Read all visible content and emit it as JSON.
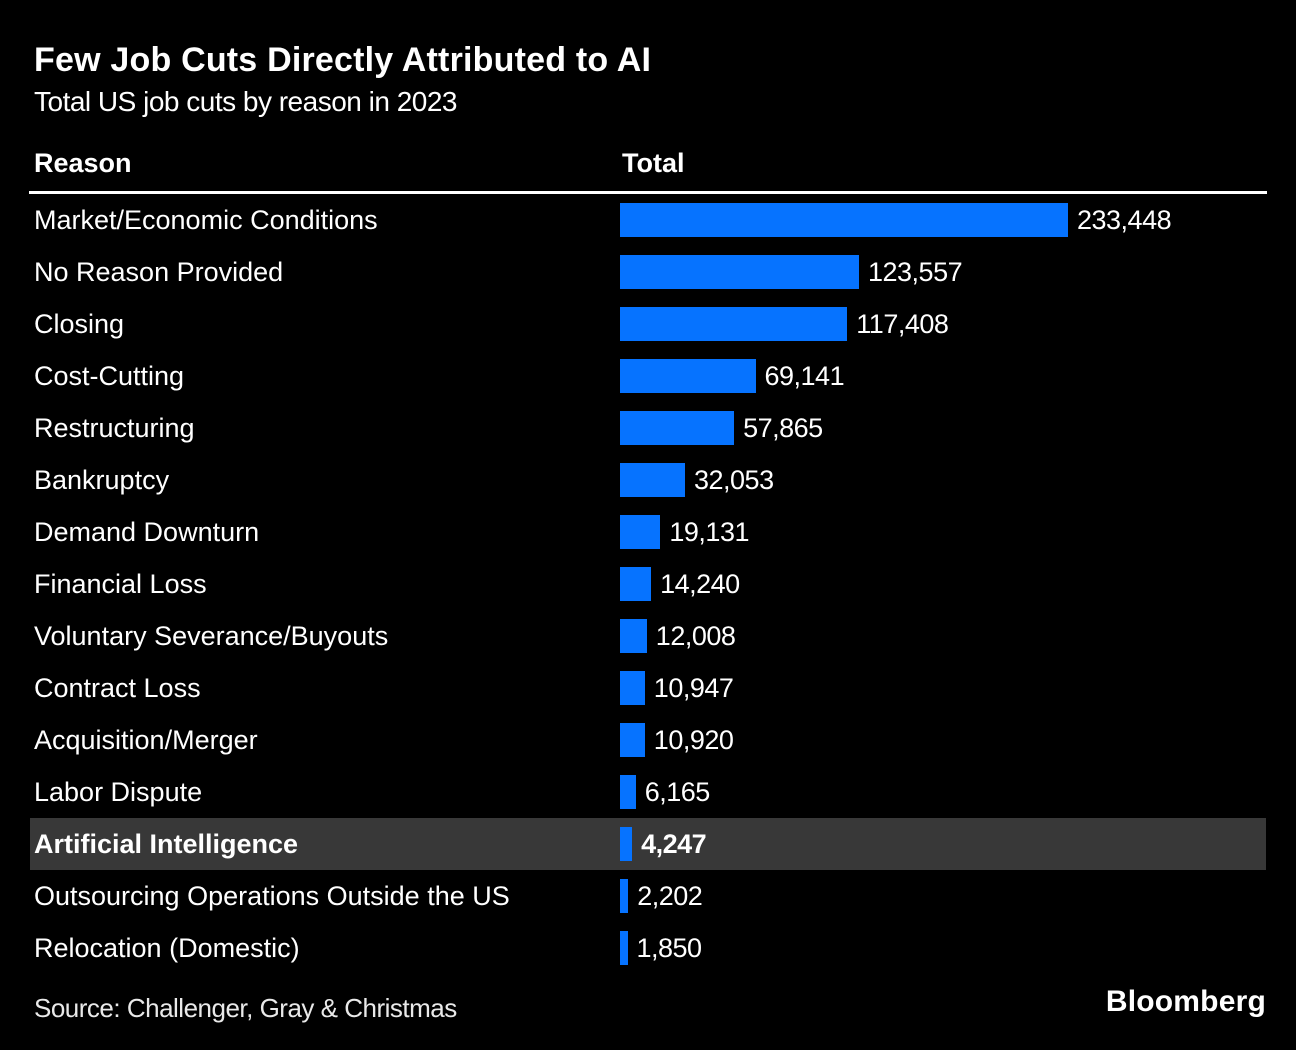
{
  "page": {
    "title": "Few Job Cuts Directly Attributed to AI",
    "subtitle": "Total US job cuts by reason in 2023",
    "source": "Source: Challenger, Gray & Christmas",
    "logo": "Bloomberg"
  },
  "table": {
    "reason_header": "Reason",
    "total_header": "Total"
  },
  "chart_data": {
    "type": "bar",
    "orientation": "horizontal",
    "title": "Few Job Cuts Directly Attributed to AI",
    "subtitle": "Total US job cuts by reason in 2023",
    "xlabel": "Total",
    "ylabel": "Reason",
    "categories": [
      "Market/Economic Conditions",
      "No Reason Provided",
      "Closing",
      "Cost-Cutting",
      "Restructuring",
      "Bankruptcy",
      "Demand Downturn",
      "Financial Loss",
      "Voluntary Severance/Buyouts",
      "Contract Loss",
      "Acquisition/Merger",
      "Labor Dispute",
      "Artificial Intelligence",
      "Outsourcing Operations Outside the US",
      "Relocation (Domestic)"
    ],
    "values": [
      233448,
      123557,
      117408,
      69141,
      57865,
      32053,
      19131,
      14240,
      12008,
      10947,
      10920,
      6165,
      4247,
      2202,
      1850
    ],
    "value_labels": [
      "233,448",
      "123,557",
      "117,408",
      "69,141",
      "57,865",
      "32,053",
      "19,131",
      "14,240",
      "12,008",
      "10,947",
      "10,920",
      "6,165",
      "4,247",
      "2,202",
      "1,850"
    ],
    "max_value": 233448,
    "highlighted_category": "Artificial Intelligence",
    "bar_color": "#0673ff",
    "highlight_row_color": "#383838",
    "background_color": "#000000",
    "text_color": "#ffffff",
    "legend": "none",
    "grid": false,
    "source": "Challenger, Gray & Christmas"
  }
}
